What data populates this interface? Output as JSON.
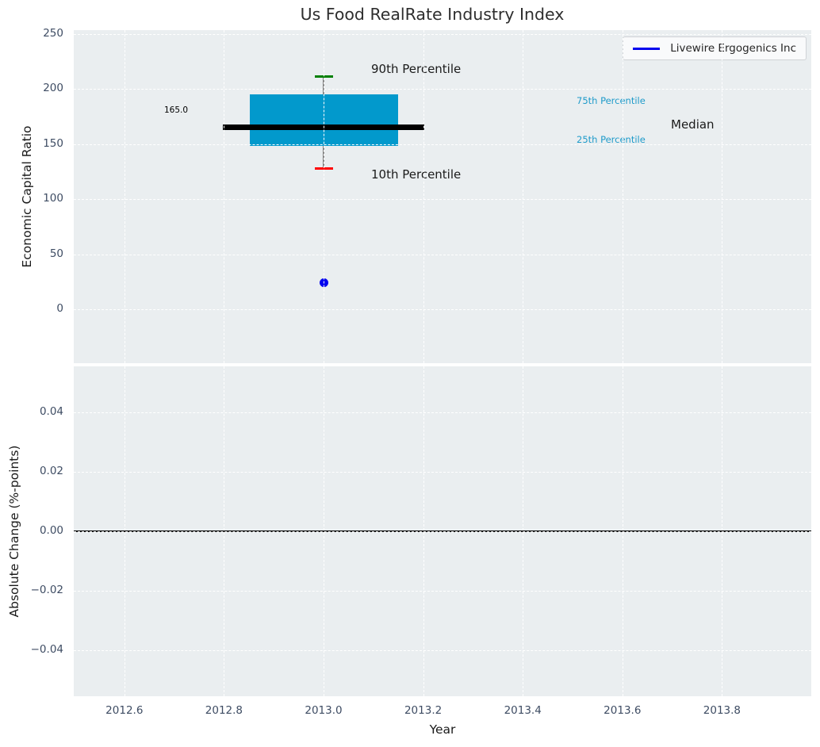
{
  "chart_data": [
    {
      "type": "box",
      "title": "Us Food RealRate Industry Index",
      "ylabel": "Economic Capital Ratio",
      "yticks": [
        0,
        50,
        100,
        150,
        200,
        250
      ],
      "ylim": [
        -49,
        253
      ],
      "xlim": [
        2012.5,
        2013.98
      ],
      "grid": "white dashed, on",
      "legend": {
        "position": "upper right",
        "label": "Livewire Ergogenics Inc",
        "color": "#0000ee"
      },
      "box": {
        "x": 2013.0,
        "p10": 128,
        "p25": 148,
        "median": 165.0,
        "p75": 195,
        "p90": 211,
        "median_label": "165.0",
        "colors": {
          "box": "#0299cc",
          "median": "#000000",
          "p90_cap": "#008000",
          "p10_cap": "#ff0000",
          "whisker": "#7f7f7f"
        }
      },
      "point": {
        "x": 2013.0,
        "y": 24,
        "color": "#0000ee",
        "name": "Livewire Ergogenics Inc"
      },
      "annotations": {
        "p90": "90th Percentile",
        "p10": "10th Percentile",
        "p75": "75th Percentile",
        "p25": "25th Percentile",
        "median": "Median",
        "median_value": "165.0"
      },
      "annotation_colors": {
        "side_percentile": "#1f9bca",
        "default": "#1a1a1a"
      }
    },
    {
      "type": "line",
      "ylabel": "Absolute Change (%-points)",
      "xlabel": "Year",
      "ylim": [
        -0.055,
        0.055
      ],
      "yticks": [
        0.04,
        0.02,
        0.0,
        -0.02,
        -0.04
      ],
      "ytick_labels": [
        "0.04",
        "0.02",
        "0.00",
        "−0.02",
        "−0.04"
      ],
      "xticks": [
        2012.6,
        2012.8,
        2013.0,
        2013.2,
        2013.4,
        2013.6,
        2013.8
      ],
      "xtick_labels": [
        "2012.6",
        "2012.8",
        "2013.0",
        "2013.2",
        "2013.4",
        "2013.6",
        "2013.8"
      ],
      "zero_line": 0.0,
      "series": []
    }
  ]
}
